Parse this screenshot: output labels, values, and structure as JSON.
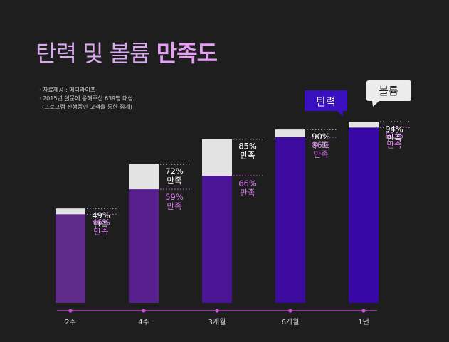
{
  "title": {
    "normal": "탄력 및 볼륨",
    "emphasis": "만족도"
  },
  "notes": [
    "· 자료제공 : 메디라이프",
    "· 2015년 설문에 응해주신 639명 대상",
    "(프로그램 진행중인 고객을 통한 집계)"
  ],
  "chart_data": {
    "type": "bar",
    "categories": [
      "2주",
      "4주",
      "3개월",
      "6개월",
      "1년"
    ],
    "series": [
      {
        "name": "탄력",
        "values": [
          46,
          59,
          66,
          86,
          91
        ],
        "labels": [
          "46%",
          "59%",
          "66%",
          "86%",
          "91%"
        ],
        "colors": [
          "#5f2b8a",
          "#581f8e",
          "#4a1496",
          "#3c0a9e",
          "#3708a6"
        ],
        "label_color": "#d97cf0"
      },
      {
        "name": "볼륨",
        "values": [
          49,
          72,
          85,
          90,
          94
        ],
        "labels": [
          "49%",
          "72%",
          "85%",
          "90%",
          "94%"
        ],
        "color": "#e3e3e3",
        "label_color": "#ffffff"
      }
    ],
    "satisfaction_word": "만족",
    "legend": [
      {
        "label": "탄력",
        "style": "purple-callout"
      },
      {
        "label": "볼륨",
        "style": "white-callout"
      }
    ],
    "ylim": [
      0,
      100
    ],
    "axis_color": "#c94fd6",
    "grid": false
  }
}
